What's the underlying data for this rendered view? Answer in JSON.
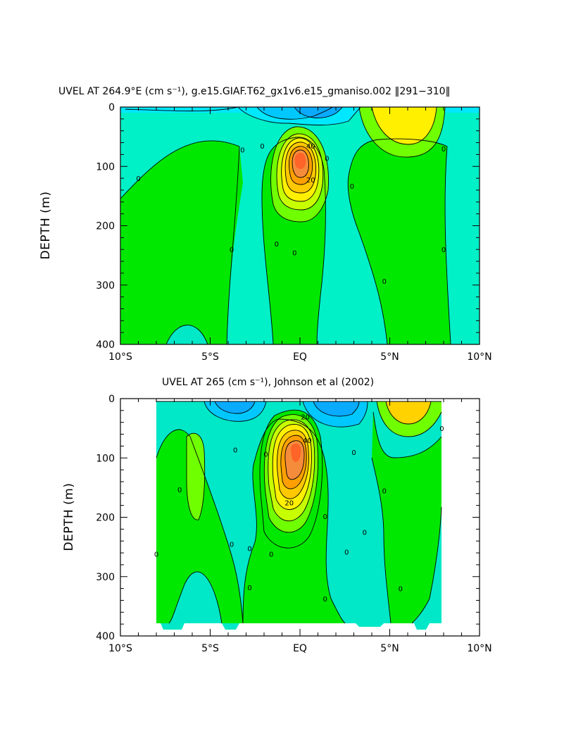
{
  "chart_data": [
    {
      "type": "contour",
      "title": "UVEL AT 264.9°E (cm s⁻¹), g.e15.GIAF.T62_gx1v6.e15_gmaniso.002 ‖291−310‖",
      "ylabel": "DEPTH (m)",
      "xlabel": "",
      "xlim": [
        -10,
        10
      ],
      "ylim": [
        400,
        0
      ],
      "x_ticks": [
        -10,
        -5,
        0,
        5,
        10
      ],
      "x_tick_labels": [
        "10°S",
        "5°S",
        "EQ",
        "5°N",
        "10°N"
      ],
      "y_ticks": [
        0,
        100,
        200,
        300,
        400
      ],
      "y_tick_labels": [
        "0",
        "100",
        "200",
        "300",
        "400"
      ],
      "features": [
        {
          "kind": "max",
          "lat": 0,
          "depth": 75,
          "value": 70
        },
        {
          "kind": "max",
          "lat": 6,
          "depth": 20,
          "value": 30
        },
        {
          "kind": "min",
          "lat": 0.8,
          "depth": 10,
          "value": -30
        }
      ],
      "contour_labels": [
        {
          "text": "0",
          "lat": -9.0,
          "depth": 120
        },
        {
          "text": "0",
          "lat": -3.2,
          "depth": 72
        },
        {
          "text": "0",
          "lat": -2.1,
          "depth": 65
        },
        {
          "text": "0",
          "lat": 1.5,
          "depth": 86
        },
        {
          "text": "0",
          "lat": 2.9,
          "depth": 133
        },
        {
          "text": "0",
          "lat": 8.0,
          "depth": 70
        },
        {
          "text": "0",
          "lat": -3.8,
          "depth": 240
        },
        {
          "text": "0",
          "lat": -1.3,
          "depth": 230
        },
        {
          "text": "0",
          "lat": -0.3,
          "depth": 245
        },
        {
          "text": "0",
          "lat": 4.7,
          "depth": 293
        },
        {
          "text": "0",
          "lat": 8.0,
          "depth": 240
        },
        {
          "text": "20",
          "lat": 0.6,
          "depth": 122
        },
        {
          "text": "40",
          "lat": 0.6,
          "depth": 65
        }
      ]
    },
    {
      "type": "contour",
      "title": "UVEL AT 265 (cm s⁻¹), Johnson et al (2002)",
      "ylabel": "DEPTH (m)",
      "xlabel": "",
      "xlim": [
        -10,
        10
      ],
      "ylim": [
        400,
        0
      ],
      "x_ticks": [
        -10,
        -5,
        0,
        5,
        10
      ],
      "x_tick_labels": [
        "10°S",
        "5°S",
        "EQ",
        "5°N",
        "10°N"
      ],
      "y_ticks": [
        0,
        100,
        200,
        300,
        400
      ],
      "y_tick_labels": [
        "0",
        "100",
        "200",
        "300",
        "400"
      ],
      "data_extent_lat": [
        -8,
        8
      ],
      "features": [
        {
          "kind": "max",
          "lat": 0,
          "depth": 70,
          "value": 70
        },
        {
          "kind": "max",
          "lat": 6,
          "depth": 15,
          "value": 30
        },
        {
          "kind": "min",
          "lat": -4,
          "depth": 10,
          "value": -30
        },
        {
          "kind": "min",
          "lat": 1.5,
          "depth": 10,
          "value": -30
        }
      ],
      "contour_labels": [
        {
          "text": "0",
          "lat": -8.0,
          "depth": 262
        },
        {
          "text": "0",
          "lat": -6.7,
          "depth": 153
        },
        {
          "text": "0",
          "lat": -3.6,
          "depth": 86
        },
        {
          "text": "0",
          "lat": -3.8,
          "depth": 245
        },
        {
          "text": "0",
          "lat": -2.8,
          "depth": 252
        },
        {
          "text": "0",
          "lat": -2.8,
          "depth": 318
        },
        {
          "text": "0",
          "lat": -1.9,
          "depth": 93
        },
        {
          "text": "0",
          "lat": -1.6,
          "depth": 262
        },
        {
          "text": "0",
          "lat": 1.4,
          "depth": 198
        },
        {
          "text": "0",
          "lat": 1.4,
          "depth": 337
        },
        {
          "text": "0",
          "lat": 2.6,
          "depth": 258
        },
        {
          "text": "0",
          "lat": 3.0,
          "depth": 90
        },
        {
          "text": "0",
          "lat": 3.6,
          "depth": 225
        },
        {
          "text": "0",
          "lat": 4.7,
          "depth": 155
        },
        {
          "text": "0",
          "lat": 5.6,
          "depth": 320
        },
        {
          "text": "0",
          "lat": 7.9,
          "depth": 50
        },
        {
          "text": "20",
          "lat": -0.6,
          "depth": 175
        },
        {
          "text": "20",
          "lat": 0.3,
          "depth": 30
        },
        {
          "text": "40",
          "lat": 0.4,
          "depth": 70
        }
      ]
    }
  ]
}
